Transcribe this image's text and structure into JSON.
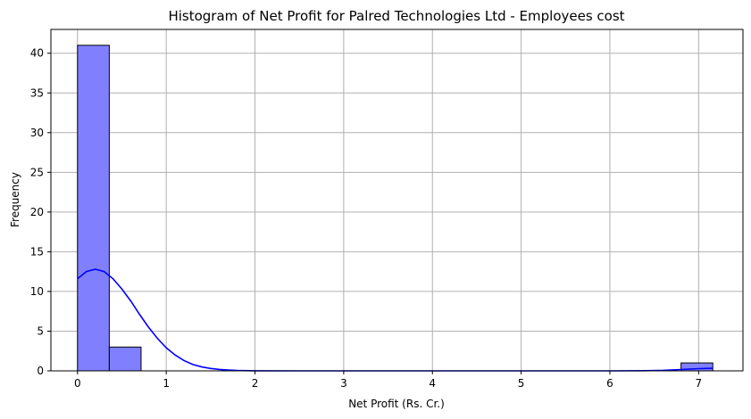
{
  "chart_data": {
    "type": "bar",
    "title": "Histogram of Net Profit for Palred Technologies Ltd - Employees cost",
    "xlabel": "Net Profit (Rs. Cr.)",
    "ylabel": "Frequency",
    "xlim": [
      -0.3,
      7.5
    ],
    "ylim": [
      0,
      43
    ],
    "x_ticks": [
      0,
      1,
      2,
      3,
      4,
      5,
      6,
      7
    ],
    "y_ticks": [
      0,
      5,
      10,
      15,
      20,
      25,
      30,
      35,
      40
    ],
    "grid": true,
    "bin_edges": [
      0.0,
      0.358,
      0.716,
      1.074,
      1.432,
      1.79,
      2.148,
      2.506,
      2.864,
      3.222,
      3.58,
      3.938,
      4.296,
      4.654,
      5.012,
      5.37,
      5.728,
      6.086,
      6.444,
      6.802,
      7.16
    ],
    "counts": [
      41,
      3,
      0,
      0,
      0,
      0,
      0,
      0,
      0,
      0,
      0,
      0,
      0,
      0,
      0,
      0,
      0,
      0,
      0,
      1
    ],
    "kde": {
      "x": [
        0.0,
        0.1,
        0.2,
        0.3,
        0.4,
        0.5,
        0.6,
        0.7,
        0.8,
        0.9,
        1.0,
        1.1,
        1.2,
        1.3,
        1.4,
        1.5,
        1.6,
        1.7,
        1.8,
        2.0,
        2.5,
        3.0,
        4.0,
        5.0,
        6.0,
        6.4,
        6.6,
        6.8,
        7.0,
        7.16
      ],
      "y": [
        11.6,
        12.5,
        12.8,
        12.5,
        11.6,
        10.3,
        8.8,
        7.1,
        5.5,
        4.1,
        2.9,
        2.0,
        1.3,
        0.8,
        0.5,
        0.3,
        0.18,
        0.1,
        0.05,
        0.01,
        0.0,
        0.0,
        0.0,
        0.0,
        0.0,
        0.02,
        0.07,
        0.17,
        0.28,
        0.33
      ]
    },
    "colors": {
      "bar_fill": "#8080ff",
      "bar_edge": "#000000",
      "kde_line": "#0000ff",
      "grid": "#b0b0b0"
    }
  }
}
